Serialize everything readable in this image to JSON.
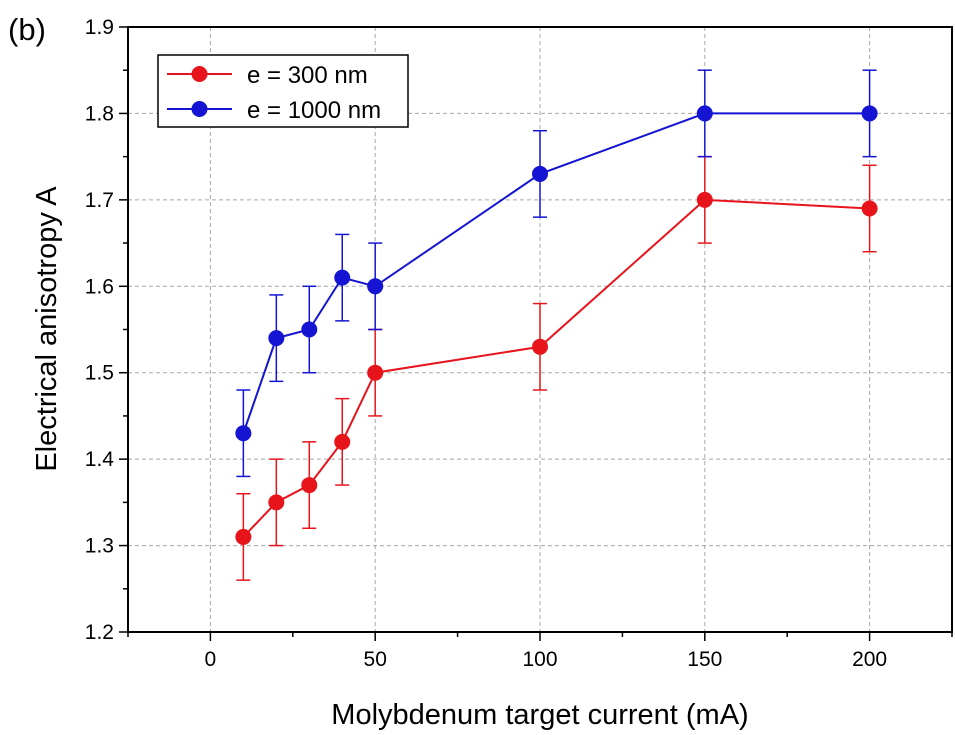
{
  "chart_data": {
    "type": "line",
    "panel_label": "(b)",
    "title": "",
    "xlabel": "Molybdenum target current (mA)",
    "ylabel": "Electrical anisotropy A",
    "xlim": [
      -25,
      225
    ],
    "ylim": [
      1.2,
      1.9
    ],
    "x_ticks": [
      0,
      50,
      100,
      150,
      200
    ],
    "x_tick_labels": [
      "0",
      "50",
      "100",
      "150",
      "200"
    ],
    "y_ticks": [
      1.2,
      1.3,
      1.4,
      1.5,
      1.6,
      1.7,
      1.8,
      1.9
    ],
    "y_tick_labels": [
      "1.2",
      "1.3",
      "1.4",
      "1.5",
      "1.6",
      "1.7",
      "1.8",
      "1.9"
    ],
    "grid": true,
    "legend_position": "top-left",
    "series": [
      {
        "name": "e = 300 nm",
        "color": "#e8141c",
        "x": [
          10,
          20,
          30,
          40,
          50,
          100,
          150,
          200
        ],
        "y": [
          1.31,
          1.35,
          1.37,
          1.42,
          1.5,
          1.53,
          1.7,
          1.69
        ],
        "error": [
          0.05,
          0.05,
          0.05,
          0.05,
          0.05,
          0.05,
          0.05,
          0.05
        ]
      },
      {
        "name": "e = 1000 nm",
        "color": "#1414d2",
        "x": [
          10,
          20,
          30,
          40,
          50,
          100,
          150,
          200
        ],
        "y": [
          1.43,
          1.54,
          1.55,
          1.61,
          1.6,
          1.73,
          1.8,
          1.8
        ],
        "error": [
          0.05,
          0.05,
          0.05,
          0.05,
          0.05,
          0.05,
          0.05,
          0.05
        ]
      }
    ]
  }
}
